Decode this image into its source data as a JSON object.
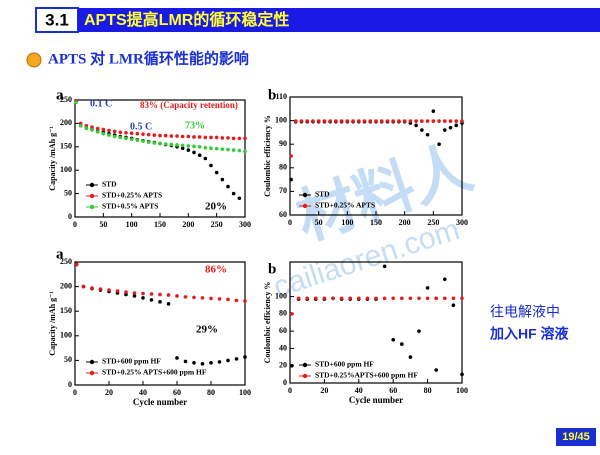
{
  "header": {
    "section": "3.1",
    "title": "APTS提高LMR的循环稳定性"
  },
  "subtitle": "APTS 对 LMR循环性能的影响",
  "side_note": [
    "往电解液中",
    "加入HF 溶液"
  ],
  "watermark": [
    "材料人",
    "cailiaoren.com"
  ],
  "page_number": "19/45",
  "chart_data": [
    {
      "type": "scatter",
      "y_label": "Capacity /mAh g⁻¹",
      "x": [
        2,
        10,
        20,
        30,
        40,
        50,
        60,
        70,
        80,
        90,
        100,
        110,
        120,
        130,
        140,
        150,
        160,
        170,
        180,
        190,
        200,
        210,
        220,
        230,
        240,
        250,
        260,
        270,
        280,
        290,
        300
      ],
      "xlim": [
        0,
        300
      ],
      "xticks": [
        0,
        50,
        100,
        150,
        200,
        250,
        300
      ],
      "ylim": [
        0,
        250
      ],
      "yticks": [
        0,
        50,
        100,
        150,
        200,
        250
      ],
      "series": [
        {
          "name": "STD",
          "color": "#000000",
          "values": [
            248,
            195,
            190,
            187,
            184,
            181,
            178,
            175,
            172,
            170,
            168,
            165,
            163,
            161,
            159,
            157,
            155,
            153,
            150,
            147,
            143,
            138,
            132,
            125,
            110,
            95,
            80,
            65,
            50,
            40,
            null
          ]
        },
        {
          "name": "STD+0.25% APTS",
          "color": "#e41a1c",
          "values": [
            248,
            200,
            195,
            192,
            189,
            187,
            185,
            183,
            181,
            180,
            179,
            178,
            177,
            176,
            175,
            174,
            174,
            173,
            173,
            172,
            172,
            171,
            171,
            170,
            170,
            170,
            169,
            169,
            168,
            168,
            168
          ]
        },
        {
          "name": "STD+0.5% APTS",
          "color": "#33cc33",
          "values": [
            245,
            195,
            190,
            186,
            182,
            178,
            175,
            172,
            170,
            168,
            166,
            164,
            162,
            160,
            158,
            157,
            156,
            155,
            154,
            153,
            152,
            151,
            150,
            148,
            147,
            146,
            145,
            144,
            143,
            142,
            140
          ]
        }
      ],
      "annotations": [
        {
          "text": "a",
          "color": "#000000"
        },
        {
          "text": "0.1 C",
          "color": "#1f3fbf"
        },
        {
          "text": "0.5 C",
          "color": "#1f3fbf"
        },
        {
          "text": "83% (Capacity retention)",
          "color": "#e41a1c"
        },
        {
          "text": "73%",
          "color": "#33cc33"
        },
        {
          "text": "20%",
          "color": "#000000"
        }
      ]
    },
    {
      "type": "scatter",
      "y_label": "Coulombic efficiency %",
      "x": [
        2,
        10,
        20,
        30,
        40,
        50,
        60,
        70,
        80,
        90,
        100,
        110,
        120,
        130,
        140,
        150,
        160,
        170,
        180,
        190,
        200,
        210,
        220,
        230,
        240,
        250,
        260,
        270,
        280,
        290,
        300
      ],
      "xlim": [
        0,
        300
      ],
      "xticks": [
        0,
        50,
        100,
        150,
        200,
        250,
        300
      ],
      "ylim": [
        60,
        110
      ],
      "yticks": [
        60,
        70,
        80,
        90,
        100,
        110
      ],
      "series": [
        {
          "name": "STD",
          "color": "#000000",
          "values": [
            75,
            99.5,
            99.5,
            99.5,
            99.5,
            99.5,
            99.5,
            99.5,
            99.5,
            99.5,
            99.5,
            99.5,
            99.5,
            99.5,
            99.5,
            99.5,
            99.5,
            99.5,
            99.5,
            99.5,
            99.5,
            99,
            98,
            96,
            94,
            104,
            90,
            96,
            97,
            98,
            99
          ]
        },
        {
          "name": "STD+0.25% APTS",
          "color": "#e41a1c",
          "values": [
            85,
            99.8,
            99.8,
            99.8,
            99.8,
            99.8,
            99.8,
            99.8,
            99.8,
            99.8,
            99.8,
            99.8,
            99.8,
            99.8,
            99.8,
            99.8,
            99.8,
            99.8,
            99.8,
            99.8,
            99.8,
            99.8,
            99.8,
            99.8,
            99.8,
            99.8,
            99.8,
            99.8,
            99.8,
            99.8,
            99.8
          ]
        }
      ],
      "annotations": [
        {
          "text": "b",
          "color": "#000000"
        }
      ]
    },
    {
      "type": "scatter",
      "y_label": "Capacity /mAh g⁻¹",
      "x_label": "Cycle number",
      "x": [
        1,
        5,
        10,
        15,
        20,
        25,
        30,
        35,
        40,
        45,
        50,
        55,
        60,
        65,
        70,
        75,
        80,
        85,
        90,
        95,
        100
      ],
      "xlim": [
        0,
        100
      ],
      "xticks": [
        0,
        20,
        40,
        60,
        80,
        100
      ],
      "ylim": [
        0,
        250
      ],
      "yticks": [
        0,
        50,
        100,
        150,
        200,
        250
      ],
      "series": [
        {
          "name": "STD+600 ppm HF",
          "color": "#000000",
          "values": [
            245,
            200,
            196,
            193,
            190,
            187,
            184,
            181,
            177,
            173,
            169,
            165,
            55,
            48,
            45,
            43,
            45,
            47,
            50,
            53,
            57
          ]
        },
        {
          "name": "STD+0.25% APTS+600 ppm HF",
          "color": "#e41a1c",
          "values": [
            245,
            200,
            197,
            195,
            193,
            191,
            189,
            187,
            186,
            185,
            184,
            183,
            181,
            179,
            178,
            177,
            176,
            175,
            174,
            172,
            171
          ]
        }
      ],
      "annotations": [
        {
          "text": "a",
          "color": "#000000"
        },
        {
          "text": "86%",
          "color": "#e41a1c"
        },
        {
          "text": "29%",
          "color": "#000000"
        }
      ]
    },
    {
      "type": "scatter",
      "y_label": "Coulombic efficiency %",
      "x_label": "Cycle number",
      "x": [
        1,
        5,
        10,
        15,
        20,
        25,
        30,
        35,
        40,
        45,
        50,
        55,
        60,
        65,
        70,
        75,
        80,
        85,
        90,
        95,
        100
      ],
      "xlim": [
        0,
        100
      ],
      "xticks": [
        0,
        20,
        40,
        60,
        80,
        100
      ],
      "ylim": [
        0,
        140
      ],
      "yticks": [
        0,
        20,
        40,
        60,
        80,
        100
      ],
      "series": [
        {
          "name": "STD+600 ppm HF",
          "color": "#000000",
          "values": [
            20,
            97,
            97,
            97,
            97,
            98,
            97,
            97,
            97,
            97,
            97,
            135,
            50,
            45,
            30,
            60,
            110,
            15,
            120,
            90,
            10
          ]
        },
        {
          "name": "STD+0.25%APTS+600 ppm HF",
          "color": "#e41a1c",
          "values": [
            80,
            98,
            98,
            98,
            98,
            98,
            98,
            98,
            98,
            98,
            98,
            98,
            98,
            98,
            98,
            98,
            98,
            98,
            98,
            98,
            98
          ]
        }
      ],
      "annotations": [
        {
          "text": "b",
          "color": "#000000"
        }
      ]
    }
  ]
}
